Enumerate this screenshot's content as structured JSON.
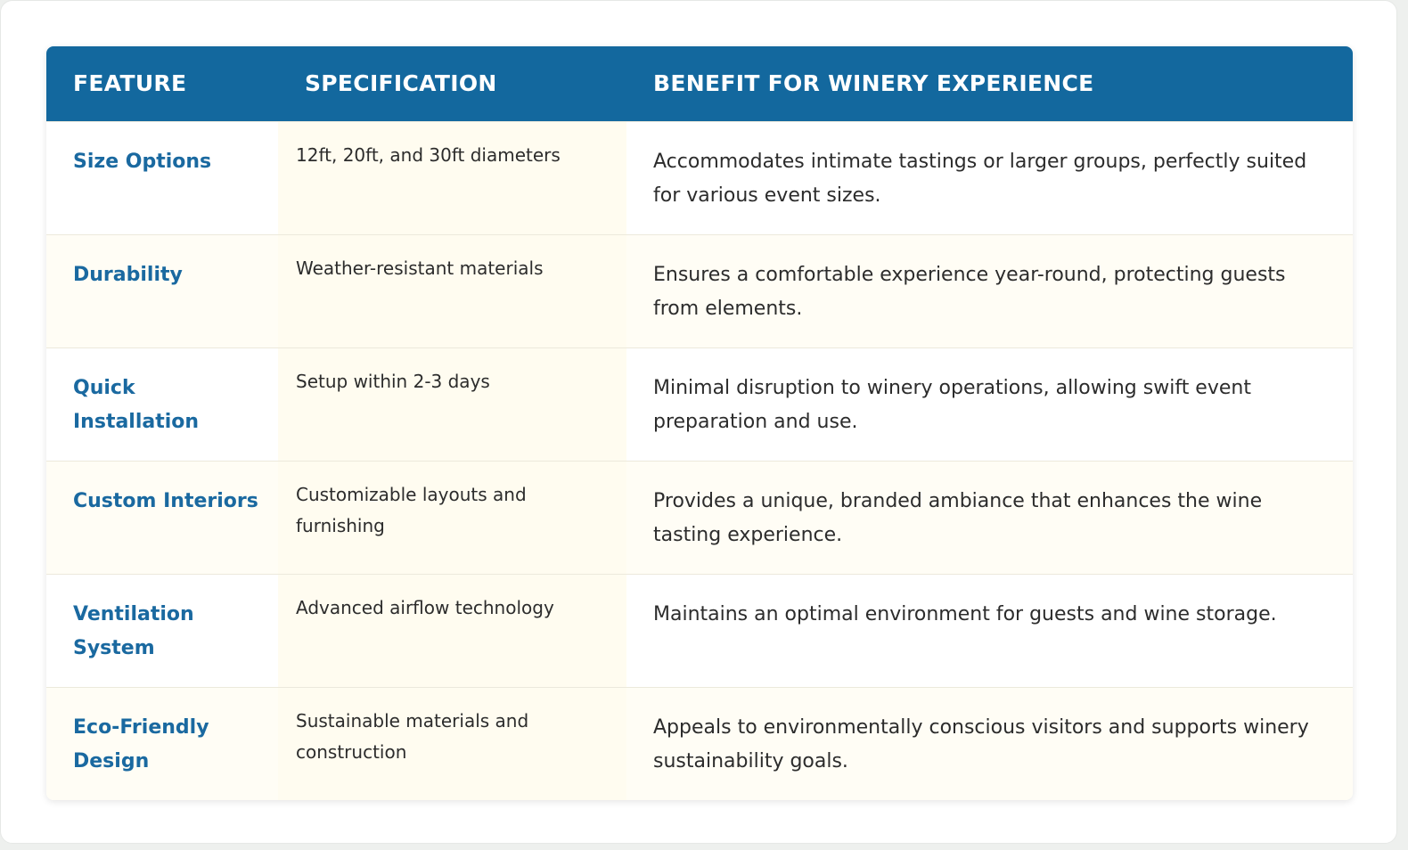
{
  "table": {
    "headers": [
      "FEATURE",
      "SPECIFICATION",
      "BENEFIT FOR WINERY EXPERIENCE"
    ],
    "rows": [
      {
        "feature": "Size Options",
        "specification": "12ft, 20ft, and 30ft diameters",
        "benefit": "Accommodates intimate tastings or larger groups, perfectly suited for various event sizes."
      },
      {
        "feature": "Durability",
        "specification": "Weather-resistant materials",
        "benefit": "Ensures a comfortable experience year-round, protecting guests from elements."
      },
      {
        "feature": "Quick Installation",
        "specification": "Setup within 2-3 days",
        "benefit": "Minimal disruption to winery operations, allowing swift event preparation and use."
      },
      {
        "feature": "Custom Interiors",
        "specification": "Customizable layouts and furnishing",
        "benefit": "Provides a unique, branded ambiance that enhances the wine tasting experience."
      },
      {
        "feature": "Ventilation System",
        "specification": "Advanced airflow technology",
        "benefit": "Maintains an optimal environment for guests and wine storage."
      },
      {
        "feature": "Eco-Friendly Design",
        "specification": "Sustainable materials and construction",
        "benefit": "Appeals to environmentally conscious visitors and supports winery sustainability goals."
      }
    ]
  },
  "colors": {
    "header_bg": "#13689e",
    "header_text": "#ffffff",
    "feature_text": "#1a69a0",
    "body_text": "#2c2c2c",
    "alt_row_bg": "#fffdf5",
    "spec_col_bg": "#fffcf0"
  }
}
